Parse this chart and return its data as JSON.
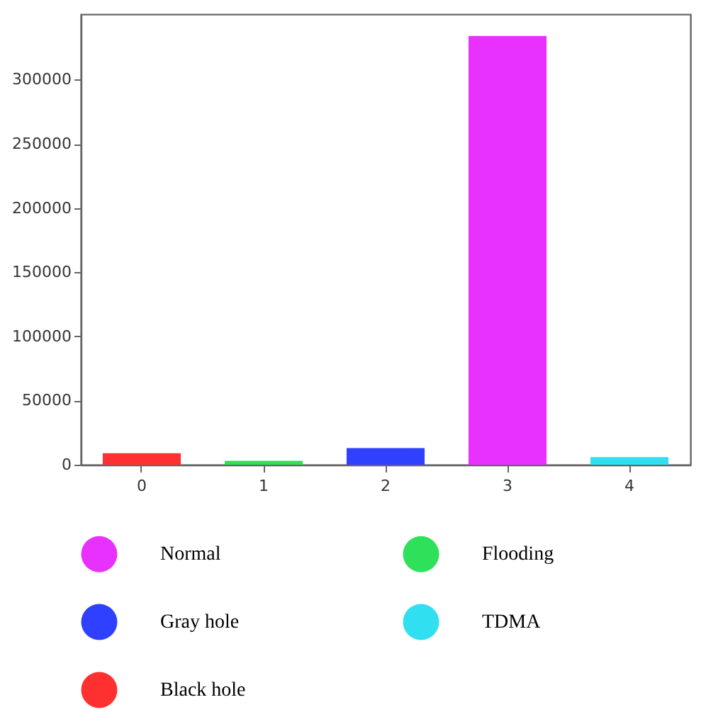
{
  "chart_data": {
    "type": "bar",
    "categories": [
      "0",
      "1",
      "2",
      "3",
      "4"
    ],
    "series": [
      {
        "name": "Normal",
        "color": "#e830ff",
        "values": [
          null,
          null,
          null,
          334000,
          null
        ]
      },
      {
        "name": "Flooding",
        "color": "#2ee05a",
        "values": [
          null,
          3000,
          null,
          null,
          null
        ]
      },
      {
        "name": "Gray hole",
        "color": "#3040ff",
        "values": [
          null,
          null,
          13000,
          null,
          null
        ]
      },
      {
        "name": "TDMA",
        "color": "#30e0f0",
        "values": [
          null,
          null,
          null,
          null,
          6000
        ]
      },
      {
        "name": "Black hole",
        "color": "#ff3030",
        "values": [
          9000,
          null,
          null,
          null,
          null
        ]
      }
    ],
    "ylim": [
      0,
      351000
    ],
    "yticks": [
      0,
      50000,
      100000,
      150000,
      200000,
      250000,
      300000
    ],
    "grid": false,
    "legend": "bottom"
  }
}
